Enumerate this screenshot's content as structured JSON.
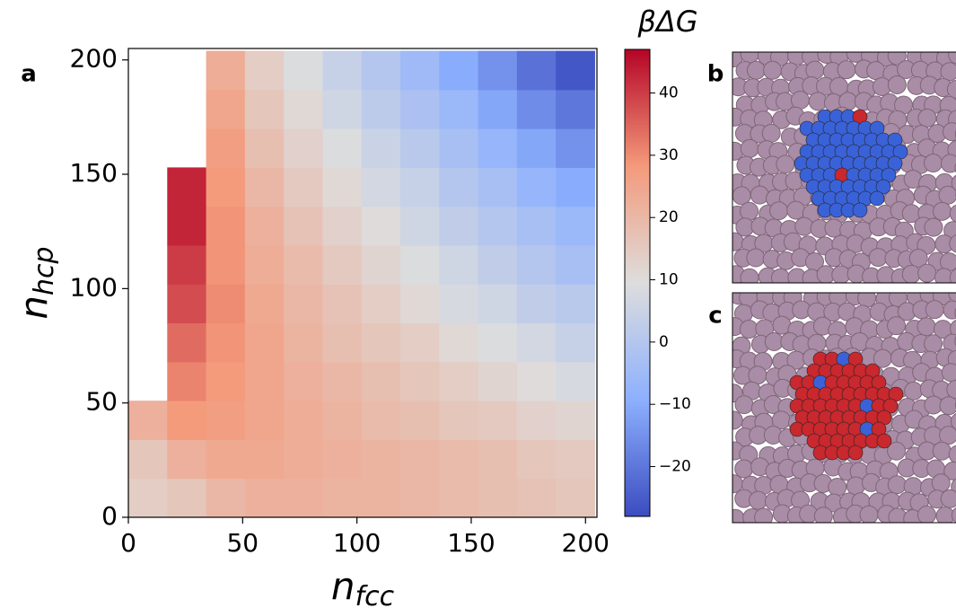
{
  "chart_data": {
    "type": "heatmap",
    "panel_labels": [
      "a",
      "b",
      "c"
    ],
    "x_label": {
      "base": "n",
      "sub": "fcc"
    },
    "y_label": {
      "base": "n",
      "sub": "hcp"
    },
    "colorbar_label": "βΔG",
    "xlim": [
      0,
      205
    ],
    "ylim": [
      0,
      205
    ],
    "xticks": [
      0,
      50,
      100,
      150,
      200
    ],
    "yticks": [
      0,
      50,
      100,
      150,
      200
    ],
    "xbins": [
      0,
      17,
      34,
      51,
      68,
      85,
      102,
      119,
      136,
      153,
      170,
      187,
      204
    ],
    "ybins": [
      0,
      17,
      34,
      51,
      68,
      85,
      102,
      119,
      136,
      153,
      170,
      187,
      204
    ],
    "z": [
      [
        14,
        16,
        20,
        22,
        22,
        21,
        21,
        20,
        19,
        18,
        17,
        16
      ],
      [
        16,
        22,
        24,
        24,
        23,
        22,
        21,
        20,
        19,
        18,
        16,
        15
      ],
      [
        22,
        28,
        27,
        25,
        23,
        21,
        19,
        18,
        16,
        15,
        13,
        12
      ],
      [
        null,
        31,
        28,
        25,
        22,
        20,
        18,
        16,
        14,
        12,
        10,
        8
      ],
      [
        null,
        34,
        29,
        25,
        21,
        18,
        16,
        14,
        11,
        9,
        7,
        4
      ],
      [
        null,
        38,
        30,
        24,
        20,
        17,
        14,
        11,
        8,
        6,
        3,
        1
      ],
      [
        null,
        40,
        29,
        23,
        19,
        15,
        12,
        9,
        6,
        3,
        0,
        -3
      ],
      [
        null,
        43,
        29,
        22,
        17,
        13,
        10,
        6,
        3,
        0,
        -3,
        -6
      ],
      [
        null,
        43,
        28,
        20,
        15,
        11,
        7,
        4,
        0,
        -3,
        -7,
        -10
      ],
      [
        null,
        null,
        27,
        18,
        13,
        9,
        5,
        1,
        -3,
        -7,
        -11,
        -15
      ],
      [
        null,
        null,
        25,
        16,
        11,
        6,
        2,
        -2,
        -6,
        -11,
        -16,
        -20
      ],
      [
        null,
        null,
        23,
        14,
        9,
        4,
        0,
        -5,
        -10,
        -15,
        -21,
        -26
      ]
    ],
    "colormap": "coolwarm",
    "clim": [
      -28,
      47
    ],
    "cticks": [
      {
        "value": -20,
        "label": "−20"
      },
      {
        "value": -10,
        "label": "−10"
      },
      {
        "value": 0,
        "label": "0"
      },
      10,
      20,
      30,
      40
    ]
  }
}
